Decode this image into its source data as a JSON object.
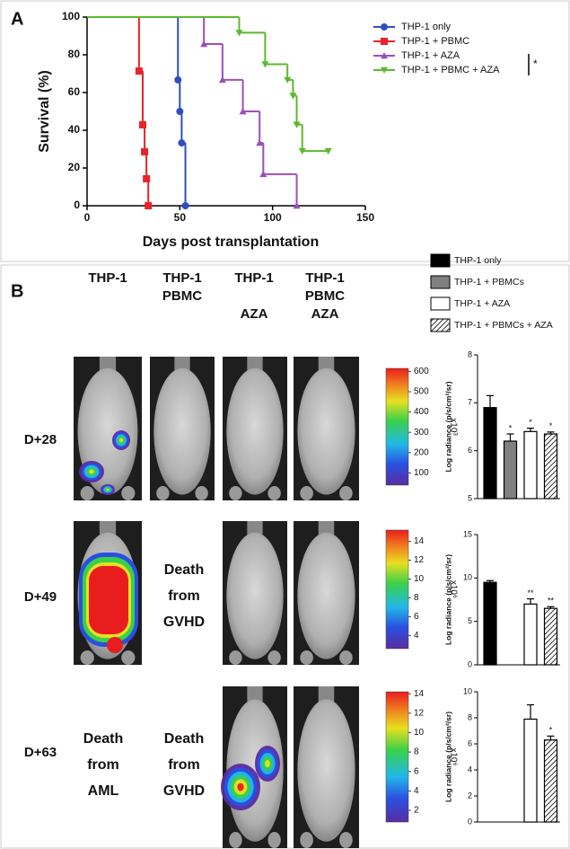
{
  "chart_data": [
    {
      "type": "line",
      "panel_label": "A",
      "xlabel": "Days post transplantation",
      "ylabel": "Survival (%)",
      "xlim": [
        0,
        150
      ],
      "xticks": [
        0,
        50,
        100,
        150
      ],
      "ylim": [
        0,
        100
      ],
      "yticks": [
        0,
        20,
        40,
        60,
        80,
        100
      ],
      "annotation": "*",
      "series": [
        {
          "name": "THP-1 only",
          "color": "#2e4fbf",
          "marker": "circle",
          "x": [
            0,
            49,
            50,
            51,
            53
          ],
          "values": [
            100,
            66.7,
            50,
            33.3,
            0
          ]
        },
        {
          "name": "THP-1 + PBMC",
          "color": "#e8232a",
          "marker": "square",
          "x": [
            0,
            28,
            30,
            31,
            32,
            33
          ],
          "values": [
            100,
            71.4,
            42.9,
            28.6,
            14.3,
            0
          ]
        },
        {
          "name": "THP-1 + AZA",
          "color": "#9b4fb8",
          "marker": "triangle-up",
          "x": [
            0,
            63,
            73,
            84,
            93,
            95,
            113
          ],
          "values": [
            100,
            85.7,
            66.7,
            50,
            33.3,
            16.7,
            0
          ]
        },
        {
          "name": "THP-1 + PBMC + AZA",
          "color": "#5cb82e",
          "marker": "triangle-down",
          "x": [
            0,
            82,
            96,
            108,
            111,
            113,
            116,
            130
          ],
          "values": [
            100,
            91.7,
            75,
            66.7,
            58.3,
            43,
            29,
            29
          ]
        }
      ]
    },
    {
      "type": "bar",
      "ylabel": "Log radiance (p/s/cm²/sr)",
      "ylim": [
        5,
        8
      ],
      "yticks": [
        5,
        6,
        7,
        8
      ],
      "values": [
        6.9,
        6.2,
        6.4,
        6.35
      ],
      "errors": [
        0.25,
        0.15,
        0.07,
        0.04
      ],
      "significance": [
        null,
        "*",
        "*",
        "*"
      ]
    },
    {
      "type": "bar",
      "ylabel": "Log radiance (p/s/cm²/sr)",
      "ylim": [
        0,
        15
      ],
      "yticks": [
        0,
        5,
        10,
        15
      ],
      "values": [
        9.5,
        null,
        7,
        6.5
      ],
      "errors": [
        0.2,
        null,
        0.6,
        0.2
      ],
      "significance": [
        null,
        null,
        "**",
        "**"
      ]
    },
    {
      "type": "bar",
      "ylabel": "Log radiance (p/s/cm²/sr)",
      "ylim": [
        0,
        10
      ],
      "yticks": [
        0,
        2,
        4,
        6,
        8,
        10
      ],
      "values": [
        null,
        null,
        7.9,
        6.3
      ],
      "errors": [
        null,
        null,
        1.1,
        0.3
      ],
      "significance": [
        null,
        null,
        null,
        "*"
      ]
    }
  ],
  "panel_b": {
    "label": "B",
    "column_headers": [
      [
        "THP-1"
      ],
      [
        "THP-1",
        "PBMC"
      ],
      [
        "THP-1",
        "AZA"
      ],
      [
        "THP-1",
        "PBMC",
        "AZA"
      ]
    ],
    "row_labels": [
      "D+28",
      "D+49",
      "D+63"
    ],
    "death_notes": [
      [
        "Death",
        "from",
        "GVHD"
      ],
      [
        "Death",
        "from",
        "AML"
      ],
      [
        "Death",
        "from",
        "GVHD"
      ]
    ],
    "legend": [
      {
        "name": "THP-1 only",
        "fill": "#000000"
      },
      {
        "name": "THP-1 + PBMCs",
        "fill": "#808080"
      },
      {
        "name": "THP-1 + AZA",
        "fill": "#ffffff"
      },
      {
        "name": "THP-1 + PBMCs + AZA",
        "fill": "hatch"
      }
    ],
    "colorbars": [
      {
        "range": [
          40,
          615
        ],
        "ticks": [
          100,
          200,
          300,
          400,
          500,
          600
        ],
        "multiplier": "x10³"
      },
      {
        "range": [
          2.6,
          15.2
        ],
        "ticks": [
          4,
          6,
          8,
          10,
          12,
          14
        ],
        "multiplier": "x10⁶"
      },
      {
        "range": [
          0.8,
          14.2
        ],
        "ticks": [
          2,
          4,
          6,
          8,
          10,
          12,
          14
        ],
        "multiplier": "x10⁶"
      }
    ]
  }
}
